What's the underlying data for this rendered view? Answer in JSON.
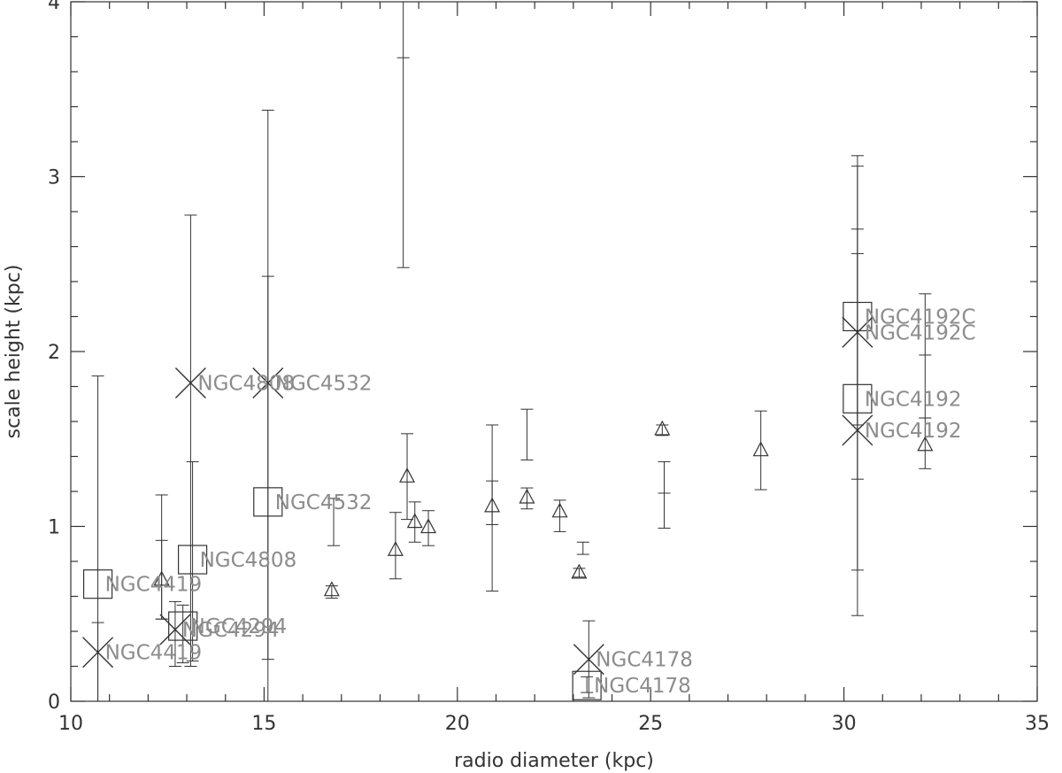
{
  "chart_data": {
    "type": "scatter",
    "title": "",
    "xlabel": "radio diameter (kpc)",
    "ylabel": "scale height (kpc)",
    "xlim": [
      10,
      35
    ],
    "ylim": [
      0,
      4
    ],
    "x_ticks": [
      10,
      15,
      20,
      25,
      30,
      35
    ],
    "y_ticks": [
      0,
      1,
      2,
      3,
      4
    ],
    "x_tick_labels": [
      "10",
      "15",
      "20",
      "25",
      "30",
      "35"
    ],
    "y_tick_labels": [
      "0",
      "1",
      "2",
      "3",
      "4"
    ],
    "grid": false,
    "legend": "none",
    "series": [
      {
        "marker": "triangle",
        "points": [
          {
            "x": 12.35,
            "y": 0.69,
            "ylo": 0.47,
            "yhi": 0.92
          },
          {
            "x": 16.75,
            "y": 0.63,
            "ylo": 0.59,
            "yhi": 0.66
          },
          {
            "x": 18.4,
            "y": 0.86,
            "ylo": 0.7,
            "yhi": 1.08
          },
          {
            "x": 18.7,
            "y": 1.28,
            "ylo": 1.04,
            "yhi": 1.53
          },
          {
            "x": 18.9,
            "y": 1.02,
            "ylo": 0.91,
            "yhi": 1.14
          },
          {
            "x": 19.25,
            "y": 0.99,
            "ylo": 0.89,
            "yhi": 1.09
          },
          {
            "x": 20.9,
            "y": 1.11,
            "ylo": 1.01,
            "yhi": 1.26
          },
          {
            "x": 21.8,
            "y": 1.16,
            "ylo": 1.1,
            "yhi": 1.22
          },
          {
            "x": 22.65,
            "y": 1.08,
            "ylo": 0.97,
            "yhi": 1.15
          },
          {
            "x": 23.15,
            "y": 0.73,
            "ylo": 0.71,
            "yhi": 0.76
          },
          {
            "x": 25.3,
            "y": 1.55,
            "ylo": 1.52,
            "yhi": 1.58
          },
          {
            "x": 27.85,
            "y": 1.43,
            "ylo": 1.21,
            "yhi": 1.66
          },
          {
            "x": 32.1,
            "y": 1.46,
            "ylo": 1.33,
            "yhi": 1.62
          }
        ]
      },
      {
        "marker": "square",
        "points": [
          {
            "x": 10.7,
            "y": 0.67,
            "ylo": 0.0,
            "yhi": 1.86,
            "label": "NGC4419"
          },
          {
            "x": 12.9,
            "y": 0.43,
            "ylo": 0.22,
            "yhi": 0.55,
            "label": "NGC4294"
          },
          {
            "x": 13.15,
            "y": 0.81,
            "ylo": 0.23,
            "yhi": 1.37,
            "label": "NGC4808"
          },
          {
            "x": 15.1,
            "y": 1.14,
            "ylo": 0.0,
            "yhi": 2.43,
            "label": "NGC4532"
          },
          {
            "x": 23.35,
            "y": 0.09,
            "ylo": 0.05,
            "yhi": 0.14,
            "label": "NGC4178"
          },
          {
            "x": 30.35,
            "y": 1.73,
            "ylo": 1.27,
            "yhi": 2.56,
            "label": "NGC4192"
          },
          {
            "x": 30.35,
            "y": 2.2,
            "ylo": 1.58,
            "yhi": 3.06,
            "label": "NGC4192C"
          }
        ]
      },
      {
        "marker": "cross",
        "points": [
          {
            "x": 10.7,
            "y": 0.28,
            "ylo": 0.0,
            "yhi": 0.45,
            "label": "NGC4419"
          },
          {
            "x": 12.7,
            "y": 0.41,
            "ylo": 0.2,
            "yhi": 0.57,
            "label": "NGC4294"
          },
          {
            "x": 13.1,
            "y": 1.82,
            "ylo": 0.2,
            "yhi": 2.78,
            "label": "NGC4808"
          },
          {
            "x": 15.1,
            "y": 1.82,
            "ylo": 0.24,
            "yhi": 3.38,
            "label": "NGC4532"
          },
          {
            "x": 23.4,
            "y": 0.24,
            "ylo": 0.02,
            "yhi": 0.46,
            "label": "NGC4178"
          },
          {
            "x": 30.35,
            "y": 1.55,
            "ylo": 0.49,
            "yhi": 2.7,
            "label": "NGC4192"
          },
          {
            "x": 30.35,
            "y": 2.11,
            "ylo": 0.75,
            "yhi": 3.12,
            "label": "NGC4192C"
          }
        ]
      }
    ],
    "extra_error_bars": [
      {
        "x": 12.35,
        "ylo": 0.47,
        "yhi": 1.18
      },
      {
        "x": 16.8,
        "ylo": 0.89,
        "yhi": 1.16
      },
      {
        "x": 18.6,
        "ylo": 2.48,
        "yhi": 4.0,
        "ymid": 3.68
      },
      {
        "x": 21.8,
        "ylo": 1.38,
        "yhi": 1.67
      },
      {
        "x": 20.9,
        "ylo": 0.63,
        "yhi": 1.58
      },
      {
        "x": 23.25,
        "ylo": 0.84,
        "yhi": 0.91
      },
      {
        "x": 25.35,
        "ylo": 0.99,
        "yhi": 1.37,
        "ymid": 1.19
      },
      {
        "x": 32.1,
        "ylo": 1.62,
        "yhi": 2.33,
        "ymid": 1.98
      }
    ]
  }
}
